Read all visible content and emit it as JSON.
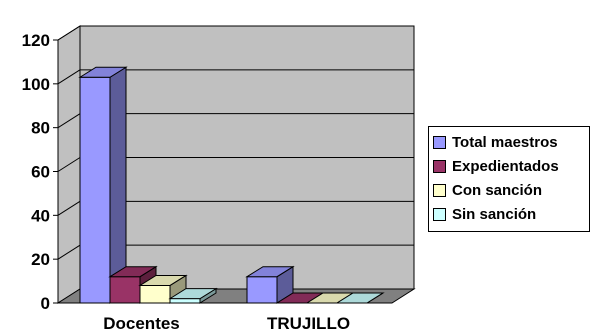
{
  "chart_data": {
    "type": "bar",
    "style": "3d-clustered",
    "categories": [
      "Docentes",
      "TRUJILLO"
    ],
    "series": [
      {
        "name": "Total maestros",
        "values": [
          103,
          12
        ],
        "color": "#9999ff"
      },
      {
        "name": "Expedientados",
        "values": [
          12,
          0
        ],
        "color": "#993366"
      },
      {
        "name": "Con sanción",
        "values": [
          8,
          0
        ],
        "color": "#ffffcc"
      },
      {
        "name": "Sin sanción",
        "values": [
          2,
          0
        ],
        "color": "#ccffff"
      }
    ],
    "ylim": [
      0,
      120
    ],
    "yticks": [
      "0",
      "20",
      "40",
      "60",
      "80",
      "100",
      "120"
    ],
    "grid": true,
    "wall_color": "#c0c0c0",
    "floor_color": "#808080",
    "legend_position": "right"
  }
}
